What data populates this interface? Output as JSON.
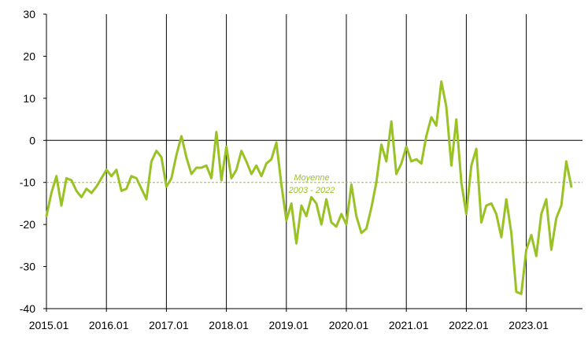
{
  "chart_data": {
    "type": "line",
    "title": "",
    "xlabel": "",
    "ylabel": "",
    "ylim": [
      -40,
      30
    ],
    "yticks": [
      30,
      20,
      10,
      0,
      -10,
      -20,
      -30,
      -40
    ],
    "xticks": [
      "2015.01",
      "2016.01",
      "2017.01",
      "2018.01",
      "2019.01",
      "2020.01",
      "2021.01",
      "2022.01",
      "2023.01"
    ],
    "grid": "vertical lines at each January, horizontal line at zero",
    "reference_line": {
      "label_line1": "Moyenne",
      "label_line2": "2003 - 2022",
      "value": -10,
      "style": "dashed"
    },
    "series": [
      {
        "color": "#99c224",
        "start": "2015.01",
        "frequency": "monthly",
        "values": [
          -18,
          -12.5,
          -8.5,
          -15.5,
          -9,
          -9.5,
          -12,
          -13.5,
          -11.5,
          -12.5,
          -11,
          -9,
          -7,
          -8.5,
          -7,
          -12,
          -11.5,
          -8.5,
          -9,
          -11.5,
          -14,
          -5,
          -2.5,
          -4,
          -11,
          -9,
          -3.5,
          1,
          -4,
          -8,
          -6.5,
          -6.5,
          -6,
          -9,
          2,
          -9.5,
          -1.5,
          -9,
          -7,
          -2.5,
          -5,
          -8,
          -6,
          -8.5,
          -5.5,
          -4.5,
          -0.5,
          -10.5,
          -19,
          -15,
          -24.5,
          -15.5,
          -18,
          -13.5,
          -15,
          -20,
          -14,
          -19.5,
          -20.5,
          -17.5,
          -20,
          -10.5,
          -18,
          -22,
          -21,
          -16,
          -10,
          -1,
          -5,
          4.5,
          -8,
          -5.5,
          -1.5,
          -5,
          -4.5,
          -5.5,
          1,
          5.5,
          3.5,
          14,
          8,
          -6,
          5,
          -10,
          -17.5,
          -6,
          -2,
          -19.5,
          -15.5,
          -15,
          -17.5,
          -23,
          -14,
          -22,
          -36,
          -36.5,
          -26,
          -22.5,
          -27.5,
          -17.5,
          -14,
          -26,
          -18.5,
          -15.5,
          -5,
          -11
        ]
      }
    ]
  }
}
